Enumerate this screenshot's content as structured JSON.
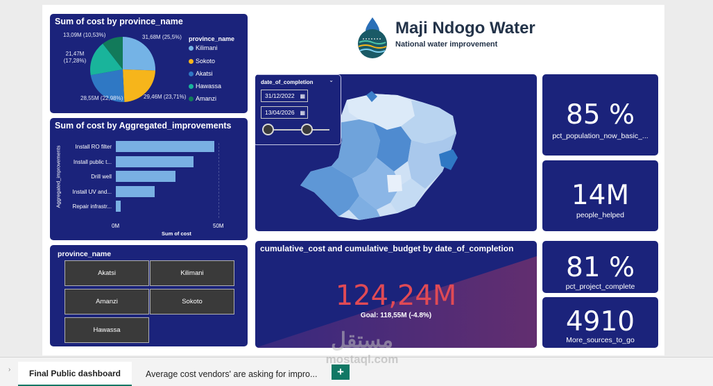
{
  "brand": {
    "title": "Maji Ndogo Water",
    "subtitle": "National water improvement"
  },
  "colors": {
    "card_bg": "#1b237b",
    "kilimani": "#74b3e6",
    "sokoto": "#f6b51b",
    "akatsi": "#2f78c4",
    "hawassa": "#19b49b",
    "amanzi": "#127a5a",
    "total_red": "#e04a55"
  },
  "pie_card": {
    "title": "Sum of cost by province_name",
    "legend_title": "province_name",
    "labels": [
      "31,68M (25,5%)",
      "29,46M (23,71%)",
      "28,55M (22,98%)",
      "21,47M (17,28%)",
      "13,09M (10,53%)"
    ]
  },
  "bar_card": {
    "title": "Sum of cost by Aggregated_improvements",
    "ylabel": "Aggregated_improvements",
    "xlabel": "Sum of cost",
    "ticks": [
      "0M",
      "50M"
    ]
  },
  "province_slicer": {
    "title": "province_name",
    "buttons": [
      "Akatsi",
      "Kilimani",
      "Amanzi",
      "Sokoto",
      "Hawassa"
    ]
  },
  "date_slicer": {
    "title": "date_of_completion",
    "start": "31/12/2022",
    "end": "13/04/2026"
  },
  "kpis": {
    "pct_population": {
      "value": "85 %",
      "label": "pct_population_now_basic_..."
    },
    "people_helped": {
      "value": "14M",
      "label": "people_helped"
    },
    "pct_project": {
      "value": "81 %",
      "label": "pct_project_complete"
    },
    "sources": {
      "value": "4910",
      "label": "More_sources_to_go"
    }
  },
  "cumulative": {
    "title": "cumulative_cost and cumulative_budget by date_of_completion",
    "value": "124,24M",
    "goal": "Goal: 118,55M (-4.8%)"
  },
  "tabs": {
    "active": "Final Public dashboard",
    "other": "Average cost vendors' are asking for impro...",
    "add": "+"
  },
  "watermark": {
    "arabic": "مستقل",
    "latin": "mostaql.com"
  },
  "chart_data": [
    {
      "type": "pie",
      "title": "Sum of cost by province_name",
      "categories": [
        "Kilimani",
        "Sokoto",
        "Akatsi",
        "Hawassa",
        "Amanzi"
      ],
      "values": [
        31.68,
        29.46,
        28.55,
        21.47,
        13.09
      ],
      "percent": [
        25.5,
        23.71,
        22.98,
        17.28,
        10.53
      ],
      "unit": "M",
      "colors": [
        "#74b3e6",
        "#f6b51b",
        "#2f78c4",
        "#19b49b",
        "#127a5a"
      ],
      "legend": "right"
    },
    {
      "type": "bar",
      "orientation": "horizontal",
      "title": "Sum of cost by Aggregated_improvements",
      "categories": [
        "Install RO filter",
        "Install public t...",
        "Drill well",
        "Install UV and...",
        "Repair infrastr..."
      ],
      "values": [
        48,
        38,
        29,
        19,
        2.5
      ],
      "xlabel": "Sum of cost",
      "ylabel": "Aggregated_improvements",
      "xlim": [
        0,
        50
      ],
      "unit": "M",
      "color": "#79b0e3"
    }
  ]
}
